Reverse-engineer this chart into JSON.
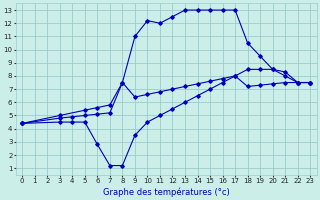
{
  "title": "Graphe des températures (°c)",
  "bg_color": "#cceee8",
  "grid_color": "#99cccc",
  "line_color": "#0000bb",
  "xlim": [
    -0.5,
    23.5
  ],
  "ylim": [
    0.5,
    13.5
  ],
  "xticks": [
    0,
    1,
    2,
    3,
    4,
    5,
    6,
    7,
    8,
    9,
    10,
    11,
    12,
    13,
    14,
    15,
    16,
    17,
    18,
    19,
    20,
    21,
    22,
    23
  ],
  "yticks": [
    1,
    2,
    3,
    4,
    5,
    6,
    7,
    8,
    9,
    10,
    11,
    12,
    13
  ],
  "curve_upper": {
    "x": [
      0,
      3,
      5,
      6,
      7,
      8,
      9,
      10,
      11,
      12,
      13,
      14,
      15,
      16,
      17,
      18,
      19,
      20,
      21,
      22,
      23
    ],
    "y": [
      4.4,
      5.0,
      5.4,
      5.6,
      5.8,
      7.5,
      11.0,
      12.2,
      12.0,
      12.5,
      13.0,
      13.0,
      13.0,
      13.0,
      13.0,
      10.5,
      9.5,
      8.5,
      8.3,
      7.5,
      7.5
    ]
  },
  "curve_mid": {
    "x": [
      0,
      3,
      4,
      5,
      6,
      7,
      8,
      9,
      10,
      11,
      12,
      13,
      14,
      15,
      16,
      17,
      18,
      19,
      20,
      21,
      22,
      23
    ],
    "y": [
      4.4,
      4.8,
      4.9,
      5.0,
      5.1,
      5.2,
      7.5,
      6.4,
      6.6,
      6.8,
      7.0,
      7.2,
      7.4,
      7.6,
      7.8,
      8.0,
      7.2,
      7.3,
      7.4,
      7.5,
      7.5,
      7.5
    ]
  },
  "curve_lower": {
    "x": [
      0,
      3,
      4,
      5,
      6,
      7,
      8,
      9,
      10,
      11,
      12,
      13,
      14,
      15,
      16,
      17,
      18,
      19,
      20,
      21,
      22,
      23
    ],
    "y": [
      4.4,
      4.5,
      4.5,
      4.5,
      2.8,
      1.2,
      1.2,
      3.5,
      4.5,
      5.0,
      5.5,
      6.0,
      6.5,
      7.0,
      7.5,
      8.0,
      8.5,
      8.5,
      8.5,
      8.0,
      7.5,
      7.5
    ]
  }
}
